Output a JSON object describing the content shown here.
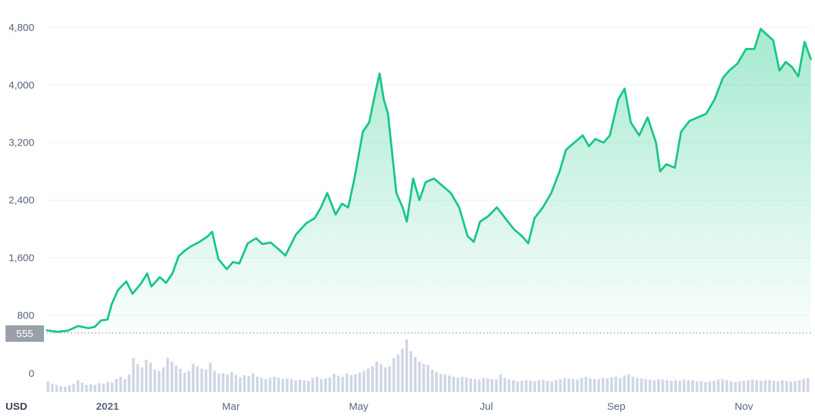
{
  "chart_data": {
    "type": "area",
    "currency_label": "USD",
    "reference": {
      "value": 555,
      "label": "555"
    },
    "y_ticks": [
      {
        "value": 800,
        "label": "800"
      },
      {
        "value": 1600,
        "label": "1,600"
      },
      {
        "value": 2400,
        "label": "2,400"
      },
      {
        "value": 3200,
        "label": "3,200"
      },
      {
        "value": 4000,
        "label": "4,000"
      },
      {
        "value": 4800,
        "label": "4,800"
      }
    ],
    "volume_zero_label": "0",
    "ylim": [
      555,
      4850
    ],
    "x_ticks": [
      {
        "date": "2021-01-01",
        "label": "2021",
        "bold": true
      },
      {
        "date": "2021-03-01",
        "label": "Mar",
        "bold": false
      },
      {
        "date": "2021-05-01",
        "label": "May",
        "bold": false
      },
      {
        "date": "2021-07-01",
        "label": "Jul",
        "bold": false
      },
      {
        "date": "2021-09-01",
        "label": "Sep",
        "bold": false
      },
      {
        "date": "2021-11-01",
        "label": "Nov",
        "bold": false
      }
    ],
    "xlim": [
      "2020-12-03",
      "2021-12-03"
    ],
    "series": [
      {
        "line_color": "#16c784",
        "points": [
          [
            "2020-12-03",
            590
          ],
          [
            "2020-12-08",
            570
          ],
          [
            "2020-12-13",
            585
          ],
          [
            "2020-12-18",
            650
          ],
          [
            "2020-12-23",
            620
          ],
          [
            "2020-12-26",
            640
          ],
          [
            "2020-12-29",
            730
          ],
          [
            "2021-01-01",
            740
          ],
          [
            "2021-01-03",
            950
          ],
          [
            "2021-01-06",
            1150
          ],
          [
            "2021-01-10",
            1270
          ],
          [
            "2021-01-13",
            1100
          ],
          [
            "2021-01-17",
            1240
          ],
          [
            "2021-01-20",
            1380
          ],
          [
            "2021-01-22",
            1200
          ],
          [
            "2021-01-26",
            1330
          ],
          [
            "2021-01-29",
            1250
          ],
          [
            "2021-02-01",
            1380
          ],
          [
            "2021-02-04",
            1620
          ],
          [
            "2021-02-07",
            1700
          ],
          [
            "2021-02-10",
            1760
          ],
          [
            "2021-02-14",
            1820
          ],
          [
            "2021-02-18",
            1900
          ],
          [
            "2021-02-20",
            1960
          ],
          [
            "2021-02-23",
            1580
          ],
          [
            "2021-02-27",
            1440
          ],
          [
            "2021-03-02",
            1540
          ],
          [
            "2021-03-05",
            1520
          ],
          [
            "2021-03-09",
            1800
          ],
          [
            "2021-03-13",
            1870
          ],
          [
            "2021-03-16",
            1790
          ],
          [
            "2021-03-20",
            1810
          ],
          [
            "2021-03-24",
            1710
          ],
          [
            "2021-03-27",
            1630
          ],
          [
            "2021-04-01",
            1920
          ],
          [
            "2021-04-06",
            2080
          ],
          [
            "2021-04-10",
            2150
          ],
          [
            "2021-04-13",
            2300
          ],
          [
            "2021-04-16",
            2500
          ],
          [
            "2021-04-20",
            2200
          ],
          [
            "2021-04-23",
            2350
          ],
          [
            "2021-04-26",
            2300
          ],
          [
            "2021-04-29",
            2700
          ],
          [
            "2021-05-03",
            3350
          ],
          [
            "2021-05-06",
            3480
          ],
          [
            "2021-05-09",
            3900
          ],
          [
            "2021-05-11",
            4160
          ],
          [
            "2021-05-13",
            3800
          ],
          [
            "2021-05-15",
            3600
          ],
          [
            "2021-05-19",
            2500
          ],
          [
            "2021-05-22",
            2300
          ],
          [
            "2021-05-24",
            2100
          ],
          [
            "2021-05-27",
            2700
          ],
          [
            "2021-05-30",
            2400
          ],
          [
            "2021-06-02",
            2650
          ],
          [
            "2021-06-06",
            2700
          ],
          [
            "2021-06-10",
            2600
          ],
          [
            "2021-06-14",
            2500
          ],
          [
            "2021-06-18",
            2300
          ],
          [
            "2021-06-22",
            1900
          ],
          [
            "2021-06-25",
            1820
          ],
          [
            "2021-06-28",
            2100
          ],
          [
            "2021-07-02",
            2180
          ],
          [
            "2021-07-06",
            2300
          ],
          [
            "2021-07-10",
            2150
          ],
          [
            "2021-07-14",
            2000
          ],
          [
            "2021-07-18",
            1900
          ],
          [
            "2021-07-21",
            1800
          ],
          [
            "2021-07-24",
            2150
          ],
          [
            "2021-07-28",
            2300
          ],
          [
            "2021-08-01",
            2500
          ],
          [
            "2021-08-05",
            2800
          ],
          [
            "2021-08-08",
            3100
          ],
          [
            "2021-08-12",
            3200
          ],
          [
            "2021-08-16",
            3300
          ],
          [
            "2021-08-19",
            3150
          ],
          [
            "2021-08-22",
            3250
          ],
          [
            "2021-08-26",
            3200
          ],
          [
            "2021-08-29",
            3300
          ],
          [
            "2021-09-02",
            3800
          ],
          [
            "2021-09-05",
            3950
          ],
          [
            "2021-09-08",
            3480
          ],
          [
            "2021-09-12",
            3300
          ],
          [
            "2021-09-16",
            3550
          ],
          [
            "2021-09-20",
            3200
          ],
          [
            "2021-09-22",
            2800
          ],
          [
            "2021-09-25",
            2900
          ],
          [
            "2021-09-29",
            2850
          ],
          [
            "2021-10-02",
            3350
          ],
          [
            "2021-10-06",
            3500
          ],
          [
            "2021-10-10",
            3550
          ],
          [
            "2021-10-14",
            3600
          ],
          [
            "2021-10-18",
            3800
          ],
          [
            "2021-10-22",
            4100
          ],
          [
            "2021-10-25",
            4200
          ],
          [
            "2021-10-29",
            4300
          ],
          [
            "2021-11-02",
            4500
          ],
          [
            "2021-11-06",
            4500
          ],
          [
            "2021-11-09",
            4780
          ],
          [
            "2021-11-12",
            4700
          ],
          [
            "2021-11-15",
            4620
          ],
          [
            "2021-11-18",
            4200
          ],
          [
            "2021-11-21",
            4320
          ],
          [
            "2021-11-24",
            4250
          ],
          [
            "2021-11-27",
            4120
          ],
          [
            "2021-11-30",
            4600
          ],
          [
            "2021-12-03",
            4360
          ]
        ]
      }
    ],
    "volume": {
      "color": "#cfd6e4",
      "values": [
        0.18,
        0.14,
        0.12,
        0.1,
        0.09,
        0.11,
        0.14,
        0.2,
        0.16,
        0.12,
        0.13,
        0.12,
        0.15,
        0.14,
        0.17,
        0.16,
        0.22,
        0.26,
        0.22,
        0.3,
        0.58,
        0.48,
        0.42,
        0.55,
        0.5,
        0.38,
        0.36,
        0.42,
        0.58,
        0.52,
        0.45,
        0.4,
        0.33,
        0.36,
        0.48,
        0.44,
        0.4,
        0.38,
        0.5,
        0.36,
        0.31,
        0.32,
        0.3,
        0.34,
        0.29,
        0.25,
        0.29,
        0.27,
        0.32,
        0.26,
        0.24,
        0.22,
        0.24,
        0.26,
        0.24,
        0.22,
        0.23,
        0.22,
        0.2,
        0.21,
        0.2,
        0.19,
        0.24,
        0.26,
        0.22,
        0.23,
        0.25,
        0.31,
        0.28,
        0.26,
        0.32,
        0.29,
        0.3,
        0.33,
        0.36,
        0.4,
        0.44,
        0.52,
        0.48,
        0.42,
        0.44,
        0.58,
        0.64,
        0.74,
        0.9,
        0.7,
        0.6,
        0.52,
        0.48,
        0.46,
        0.38,
        0.34,
        0.31,
        0.3,
        0.28,
        0.26,
        0.24,
        0.26,
        0.25,
        0.23,
        0.22,
        0.21,
        0.24,
        0.23,
        0.22,
        0.21,
        0.3,
        0.24,
        0.22,
        0.2,
        0.18,
        0.19,
        0.2,
        0.19,
        0.18,
        0.2,
        0.21,
        0.19,
        0.18,
        0.2,
        0.22,
        0.24,
        0.23,
        0.22,
        0.21,
        0.24,
        0.26,
        0.23,
        0.22,
        0.22,
        0.24,
        0.23,
        0.25,
        0.26,
        0.24,
        0.28,
        0.3,
        0.26,
        0.24,
        0.23,
        0.22,
        0.21,
        0.2,
        0.22,
        0.21,
        0.2,
        0.19,
        0.2,
        0.19,
        0.21,
        0.2,
        0.2,
        0.18,
        0.19,
        0.17,
        0.18,
        0.19,
        0.21,
        0.22,
        0.2,
        0.18,
        0.17,
        0.18,
        0.19,
        0.2,
        0.21,
        0.2,
        0.19,
        0.2,
        0.2,
        0.19,
        0.18,
        0.2,
        0.19,
        0.18,
        0.19,
        0.2,
        0.22,
        0.24
      ]
    }
  }
}
